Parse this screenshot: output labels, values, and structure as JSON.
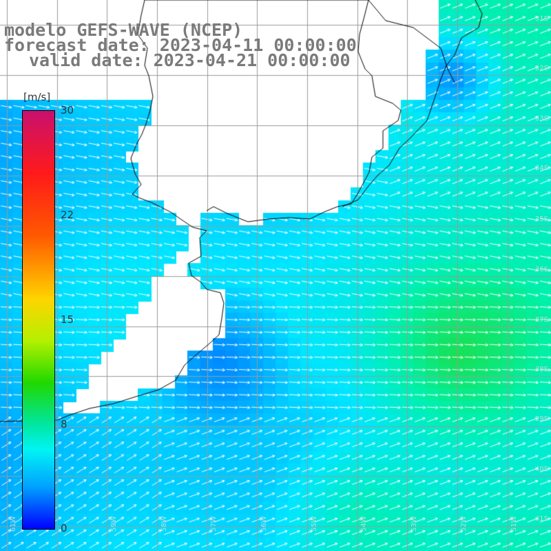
{
  "title": {
    "line1": "modelo GEFS-WAVE (NCEP)",
    "line2": "forecast date: 2023-04-11 00:00:00",
    "line3": "valid date: 2023-04-21 00:00:00"
  },
  "legend": {
    "unit": "[m/s]",
    "ticks": [
      "30",
      "22",
      "15",
      "8",
      "0"
    ],
    "tick_values": [
      30,
      22,
      15,
      8,
      0
    ],
    "min": 0,
    "max": 30,
    "colors": [
      "#0000ff",
      "#00a0ff",
      "#00f4f4",
      "#00e6a0",
      "#20d800",
      "#b4f000",
      "#ffd400",
      "#ff5a00",
      "#ff1a1a",
      "#c8106e"
    ]
  },
  "grid": {
    "lat_labels": [
      "31S",
      "32S",
      "33S",
      "34S",
      "35S",
      "36S",
      "37S",
      "38S",
      "39S",
      "40S",
      "41S"
    ],
    "lon_labels": [
      "61W",
      "60W",
      "59W",
      "58W",
      "57W",
      "56W",
      "55W",
      "54W",
      "53W",
      "52W",
      "51W"
    ]
  },
  "colors": {
    "land": "#ffffff",
    "coast": "#000000",
    "grid_line": "#9a9a9a",
    "arrow": "#ffffff",
    "title_text": "#7a7a7a"
  }
}
